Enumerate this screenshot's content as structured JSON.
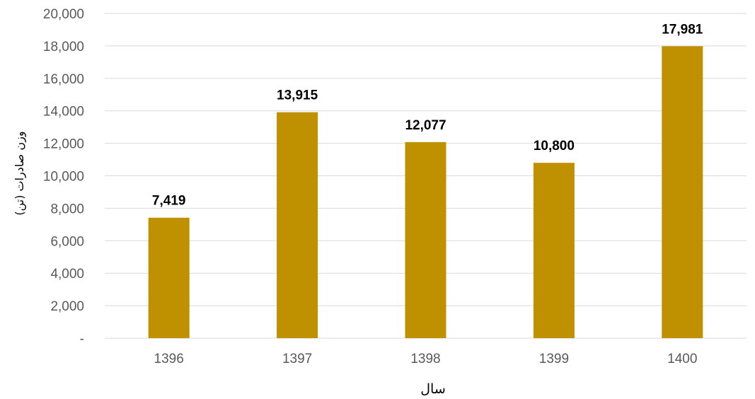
{
  "chart_data": {
    "type": "bar",
    "title": "",
    "xlabel": "سال",
    "ylabel": "وزن صادرات (تن)",
    "categories": [
      "1396",
      "1397",
      "1398",
      "1399",
      "1400"
    ],
    "values": [
      7419,
      13915,
      12077,
      10800,
      17981
    ],
    "data_labels": [
      "7,419",
      "13,915",
      "12,077",
      "10,800",
      "17,981"
    ],
    "ylim": [
      0,
      20000
    ],
    "yticks": [
      {
        "value": 0,
        "label": "-"
      },
      {
        "value": 2000,
        "label": "2,000"
      },
      {
        "value": 4000,
        "label": "4,000"
      },
      {
        "value": 6000,
        "label": "6,000"
      },
      {
        "value": 8000,
        "label": "8,000"
      },
      {
        "value": 10000,
        "label": "10,000"
      },
      {
        "value": 12000,
        "label": "12,000"
      },
      {
        "value": 14000,
        "label": "14,000"
      },
      {
        "value": 16000,
        "label": "16,000"
      },
      {
        "value": 18000,
        "label": "18,000"
      },
      {
        "value": 20000,
        "label": "20,000"
      }
    ],
    "grid": true,
    "legend": "none",
    "colors": {
      "bar": "#BF9000",
      "grid": "#D9D9D9",
      "tick_text": "#595959"
    }
  }
}
